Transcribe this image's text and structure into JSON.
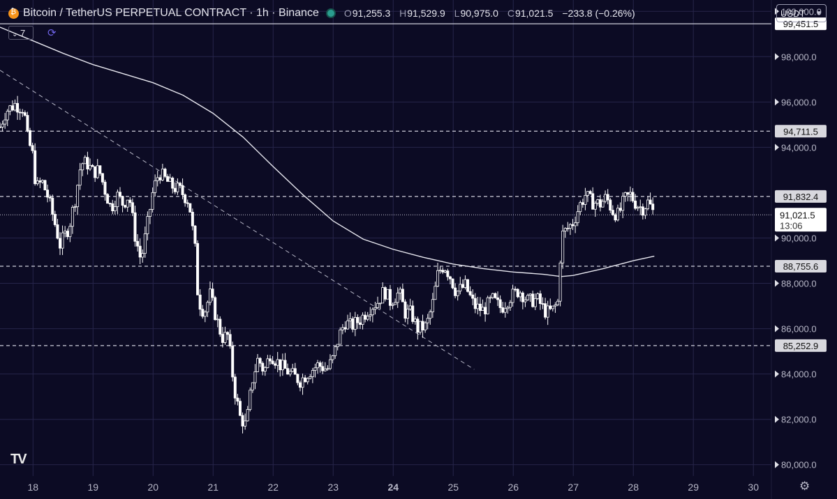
{
  "header": {
    "title": "Bitcoin / TetherUS PERPETUAL CONTRACT · 1h · Binance",
    "ohlc": {
      "o_label": "O",
      "o": "91,255.3",
      "h_label": "H",
      "h": "91,529.9",
      "l_label": "L",
      "l": "90,975.0",
      "c_label": "C",
      "c": "91,021.5",
      "change": "−233.8 (−0.26%)"
    }
  },
  "currency": "USDT",
  "indicator_count": "7",
  "colors": {
    "background": "#0c0b24",
    "grid": "#26254a",
    "candle": "#ffffff",
    "axis_text": "#b8b8c8",
    "price_tag_bg": "#ffffff"
  },
  "chart_data": {
    "type": "candlestick",
    "symbol": "Bitcoin / TetherUS PERPETUAL CONTRACT",
    "interval": "1h",
    "exchange": "Binance",
    "ylim": [
      79500,
      100500
    ],
    "xlim": [
      17.45,
      30.3
    ],
    "y_ticks": [
      "100,000.0",
      "98,000.0",
      "96,000.0",
      "94,000.0",
      "90,000.0",
      "88,000.0",
      "86,000.0",
      "84,000.0",
      "82,000.0",
      "80,000.0"
    ],
    "y_tick_values": [
      100000,
      98000,
      96000,
      94000,
      90000,
      88000,
      86000,
      84000,
      82000,
      80000
    ],
    "x_ticks": [
      "18",
      "19",
      "20",
      "21",
      "22",
      "23",
      "24",
      "25",
      "26",
      "27",
      "28",
      "29",
      "30"
    ],
    "x_tick_values": [
      18,
      19,
      20,
      21,
      22,
      23,
      24,
      25,
      26,
      27,
      28,
      29,
      30
    ],
    "bold_x_tick": "24",
    "horizontal_levels": [
      {
        "label": "99,451.5",
        "value": 99451.5,
        "style": "solid"
      },
      {
        "label": "94,711.5",
        "value": 94711.5,
        "style": "dashed"
      },
      {
        "label": "91,832.4",
        "value": 91832.4,
        "style": "dashed"
      },
      {
        "label": "88,755.6",
        "value": 88755.6,
        "style": "dashed"
      },
      {
        "label": "85,252.9",
        "value": 85252.9,
        "style": "dashed"
      }
    ],
    "current_price": {
      "label": "91,021.5",
      "countdown": "13:06",
      "value": 91021.5
    },
    "trendline": {
      "style": "dashed",
      "points": [
        [
          17.45,
          97400
        ],
        [
          25.35,
          84200
        ]
      ]
    },
    "moving_average": [
      [
        17.45,
        99300
      ],
      [
        18.0,
        98700
      ],
      [
        18.5,
        98150
      ],
      [
        19.0,
        97650
      ],
      [
        19.5,
        97250
      ],
      [
        20.0,
        96850
      ],
      [
        20.5,
        96300
      ],
      [
        21.0,
        95500
      ],
      [
        21.5,
        94450
      ],
      [
        22.0,
        93150
      ],
      [
        22.5,
        91900
      ],
      [
        23.0,
        90750
      ],
      [
        23.5,
        89950
      ],
      [
        24.0,
        89500
      ],
      [
        24.5,
        89150
      ],
      [
        25.0,
        88850
      ],
      [
        25.5,
        88650
      ],
      [
        26.0,
        88500
      ],
      [
        26.5,
        88400
      ],
      [
        26.8,
        88300
      ],
      [
        27.0,
        88350
      ],
      [
        27.5,
        88650
      ],
      [
        28.0,
        89000
      ],
      [
        28.35,
        89200
      ]
    ],
    "price_path": [
      [
        17.45,
        94900
      ],
      [
        17.55,
        95600
      ],
      [
        17.7,
        95900
      ],
      [
        17.85,
        95700
      ],
      [
        17.9,
        94500
      ],
      [
        18.0,
        93600
      ],
      [
        18.05,
        92200
      ],
      [
        18.15,
        92500
      ],
      [
        18.25,
        91800
      ],
      [
        18.35,
        90800
      ],
      [
        18.45,
        89700
      ],
      [
        18.6,
        90500
      ],
      [
        18.7,
        91700
      ],
      [
        18.8,
        93300
      ],
      [
        18.9,
        93300
      ],
      [
        19.0,
        92900
      ],
      [
        19.1,
        93000
      ],
      [
        19.2,
        92100
      ],
      [
        19.3,
        91300
      ],
      [
        19.4,
        91900
      ],
      [
        19.5,
        91500
      ],
      [
        19.6,
        91900
      ],
      [
        19.7,
        90100
      ],
      [
        19.8,
        89000
      ],
      [
        19.9,
        90500
      ],
      [
        20.0,
        92100
      ],
      [
        20.1,
        92900
      ],
      [
        20.2,
        92600
      ],
      [
        20.3,
        92300
      ],
      [
        20.45,
        92100
      ],
      [
        20.6,
        91600
      ],
      [
        20.7,
        89500
      ],
      [
        20.75,
        87300
      ],
      [
        20.85,
        86700
      ],
      [
        20.95,
        87500
      ],
      [
        21.05,
        86500
      ],
      [
        21.15,
        85600
      ],
      [
        21.25,
        85700
      ],
      [
        21.35,
        83400
      ],
      [
        21.45,
        82100
      ],
      [
        21.55,
        81700
      ],
      [
        21.65,
        83700
      ],
      [
        21.75,
        84700
      ],
      [
        21.85,
        84100
      ],
      [
        21.95,
        84900
      ],
      [
        22.05,
        84600
      ],
      [
        22.15,
        84300
      ],
      [
        22.3,
        84000
      ],
      [
        22.45,
        83700
      ],
      [
        22.6,
        84100
      ],
      [
        22.75,
        84400
      ],
      [
        22.9,
        84200
      ],
      [
        23.0,
        84700
      ],
      [
        23.1,
        85700
      ],
      [
        23.2,
        86300
      ],
      [
        23.3,
        86100
      ],
      [
        23.45,
        86400
      ],
      [
        23.6,
        86900
      ],
      [
        23.75,
        87200
      ],
      [
        23.85,
        87700
      ],
      [
        23.95,
        87200
      ],
      [
        24.1,
        87600
      ],
      [
        24.2,
        86700
      ],
      [
        24.3,
        86700
      ],
      [
        24.4,
        86000
      ],
      [
        24.55,
        86100
      ],
      [
        24.65,
        87000
      ],
      [
        24.75,
        88500
      ],
      [
        24.85,
        88800
      ],
      [
        24.95,
        88300
      ],
      [
        25.05,
        87600
      ],
      [
        25.2,
        87900
      ],
      [
        25.35,
        87000
      ],
      [
        25.5,
        86800
      ],
      [
        25.65,
        87300
      ],
      [
        25.8,
        86900
      ],
      [
        25.95,
        87400
      ],
      [
        26.1,
        87700
      ],
      [
        26.25,
        87200
      ],
      [
        26.4,
        87300
      ],
      [
        26.55,
        86700
      ],
      [
        26.65,
        86800
      ],
      [
        26.75,
        87200
      ],
      [
        26.8,
        90100
      ],
      [
        26.9,
        90400
      ],
      [
        27.0,
        90700
      ],
      [
        27.1,
        91400
      ],
      [
        27.2,
        91900
      ],
      [
        27.3,
        91600
      ],
      [
        27.45,
        91500
      ],
      [
        27.55,
        91800
      ],
      [
        27.65,
        91200
      ],
      [
        27.75,
        91000
      ],
      [
        27.85,
        91700
      ],
      [
        27.95,
        91900
      ],
      [
        28.05,
        91500
      ],
      [
        28.15,
        91300
      ],
      [
        28.25,
        91600
      ],
      [
        28.35,
        91021.5
      ]
    ]
  }
}
